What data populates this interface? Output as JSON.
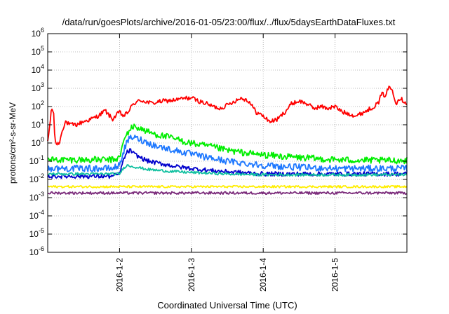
{
  "chart_data": {
    "type": "line",
    "title": "/data/run/goesPlots/archive/2016-01-05/23:00/flux/../flux/5daysEarthDataFluxes.txt",
    "xlabel": "Coordinated Universal Time (UTC)",
    "ylabel": "protons/cm²-s-sr-MeV",
    "y_scale": "log",
    "ylim": [
      1e-06,
      1000000.0
    ],
    "xlim": [
      0,
      5
    ],
    "y_ticks": [
      {
        "mant": "10",
        "exp": "-6",
        "value": -6
      },
      {
        "mant": "10",
        "exp": "-5",
        "value": -5
      },
      {
        "mant": "10",
        "exp": "-4",
        "value": -4
      },
      {
        "mant": "10",
        "exp": "-3",
        "value": -3
      },
      {
        "mant": "10",
        "exp": "-2",
        "value": -2
      },
      {
        "mant": "10",
        "exp": "-1",
        "value": -1
      },
      {
        "mant": "10",
        "exp": "0",
        "value": 0
      },
      {
        "mant": "10",
        "exp": "1",
        "value": 1
      },
      {
        "mant": "10",
        "exp": "2",
        "value": 2
      },
      {
        "mant": "10",
        "exp": "3",
        "value": 3
      },
      {
        "mant": "10",
        "exp": "4",
        "value": 4
      },
      {
        "mant": "10",
        "exp": "5",
        "value": 5
      },
      {
        "mant": "10",
        "exp": "6",
        "value": 6
      }
    ],
    "x_ticks": [
      {
        "label": "2016-1-2",
        "value": 1
      },
      {
        "label": "2016-1-3",
        "value": 2
      },
      {
        "label": "2016-1-4",
        "value": 3
      },
      {
        "label": "2016-1-5",
        "value": 4
      }
    ],
    "grid": true,
    "series": [
      {
        "color": "#ff0000",
        "noise": 0.12,
        "x": [
          0,
          0.03,
          0.05,
          0.08,
          0.1,
          0.13,
          0.17,
          0.2,
          0.25,
          0.3,
          0.4,
          0.5,
          0.6,
          0.7,
          0.8,
          0.9,
          1.0,
          1.05,
          1.1,
          1.2,
          1.3,
          1.45,
          1.6,
          1.75,
          1.9,
          2.0,
          2.1,
          2.2,
          2.3,
          2.4,
          2.5,
          2.6,
          2.7,
          2.8,
          2.9,
          3.0,
          3.05,
          3.1,
          3.2,
          3.3,
          3.4,
          3.5,
          3.6,
          3.7,
          3.8,
          3.9,
          4.0,
          4.1,
          4.2,
          4.3,
          4.4,
          4.5,
          4.6,
          4.65,
          4.7,
          4.75,
          4.8,
          4.85,
          4.9,
          5.0
        ],
        "y": [
          1,
          10,
          70,
          60,
          1.5,
          0.8,
          1.2,
          5,
          15,
          10,
          10,
          15,
          20,
          30,
          60,
          20,
          50,
          30,
          40,
          150,
          220,
          150,
          200,
          220,
          280,
          300,
          200,
          150,
          100,
          80,
          120,
          200,
          300,
          200,
          50,
          30,
          20,
          15,
          20,
          50,
          150,
          200,
          150,
          80,
          100,
          80,
          100,
          50,
          40,
          30,
          50,
          80,
          150,
          500,
          400,
          1200,
          800,
          150,
          300,
          150
        ]
      },
      {
        "color": "#00ee00",
        "noise": 0.18,
        "x": [
          0,
          0.3,
          0.6,
          0.9,
          1.0,
          1.05,
          1.1,
          1.15,
          1.2,
          1.3,
          1.4,
          1.5,
          1.7,
          1.9,
          2.1,
          2.3,
          2.5,
          2.7,
          3.0,
          3.3,
          3.6,
          4.0,
          4.5,
          5.0
        ],
        "y": [
          0.12,
          0.12,
          0.12,
          0.12,
          0.15,
          1.0,
          3,
          6,
          8,
          6,
          4,
          3,
          2,
          1.2,
          0.8,
          0.6,
          0.4,
          0.3,
          0.22,
          0.18,
          0.15,
          0.12,
          0.11,
          0.11
        ]
      },
      {
        "color": "#1e78ff",
        "noise": 0.18,
        "x": [
          0,
          0.3,
          0.6,
          0.9,
          1.0,
          1.05,
          1.1,
          1.15,
          1.2,
          1.3,
          1.4,
          1.5,
          1.7,
          1.9,
          2.1,
          2.3,
          2.5,
          2.7,
          3.0,
          3.3,
          3.6,
          4.0,
          4.5,
          5.0
        ],
        "y": [
          0.04,
          0.04,
          0.04,
          0.04,
          0.06,
          0.3,
          1,
          2,
          2,
          1.5,
          1,
          0.7,
          0.45,
          0.3,
          0.2,
          0.14,
          0.1,
          0.08,
          0.06,
          0.05,
          0.045,
          0.04,
          0.04,
          0.04
        ]
      },
      {
        "color": "#0000cc",
        "noise": 0.12,
        "x": [
          0,
          0.3,
          0.6,
          0.9,
          1.0,
          1.05,
          1.1,
          1.15,
          1.2,
          1.3,
          1.4,
          1.6,
          1.8,
          2.0,
          2.3,
          2.6,
          3.0,
          3.5,
          4.0,
          4.5,
          5.0
        ],
        "y": [
          0.015,
          0.015,
          0.015,
          0.015,
          0.02,
          0.1,
          0.3,
          0.4,
          0.25,
          0.15,
          0.1,
          0.07,
          0.05,
          0.04,
          0.03,
          0.025,
          0.02,
          0.02,
          0.02,
          0.02,
          0.02
        ]
      },
      {
        "color": "#10c0a0",
        "noise": 0.07,
        "x": [
          0,
          0.5,
          1.0,
          1.05,
          1.1,
          1.2,
          1.4,
          1.7,
          2.0,
          2.5,
          3.0,
          4.0,
          5.0
        ],
        "y": [
          0.02,
          0.02,
          0.02,
          0.04,
          0.06,
          0.05,
          0.035,
          0.028,
          0.024,
          0.02,
          0.018,
          0.018,
          0.018
        ]
      },
      {
        "color": "#ffee00",
        "noise": 0.06,
        "x": [
          0,
          5
        ],
        "y": [
          0.004,
          0.004
        ]
      },
      {
        "color": "#7a2a7a",
        "noise": 0.07,
        "x": [
          0,
          5
        ],
        "y": [
          0.0018,
          0.0018
        ]
      }
    ]
  }
}
